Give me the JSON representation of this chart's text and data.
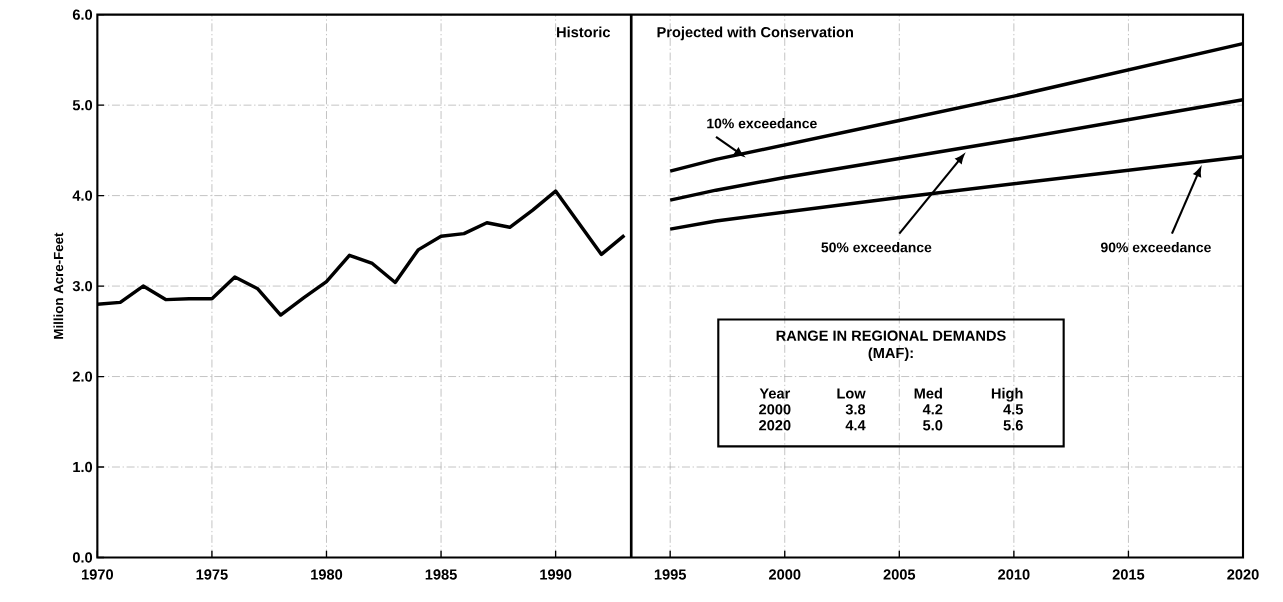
{
  "chart_data": {
    "type": "line",
    "ylabel": "Million Acre-Feet",
    "xlim": [
      1970,
      2020
    ],
    "xticks": [
      1970,
      1975,
      1980,
      1985,
      1990,
      1995,
      2000,
      2005,
      2010,
      2015,
      2020
    ],
    "ylim": [
      0,
      6
    ],
    "yticks": [
      {
        "value": 0,
        "label": "0.0"
      },
      {
        "value": 1,
        "label": "1.0"
      },
      {
        "value": 2,
        "label": "2.0"
      },
      {
        "value": 3,
        "label": "3.0"
      },
      {
        "value": 4,
        "label": "4.0"
      },
      {
        "value": 5,
        "label": "5.0"
      },
      {
        "value": 6,
        "label": "6.0"
      }
    ],
    "grid": true,
    "marker": "none",
    "line_style": "solid",
    "series": [
      {
        "color": "#000000",
        "x": [
          1970,
          1971,
          1972,
          1973,
          1974,
          1975,
          1976,
          1977,
          1978,
          1979,
          1980,
          1981,
          1982,
          1983,
          1984,
          1985,
          1986,
          1987,
          1988,
          1989,
          1990,
          1992,
          1993
        ],
        "values": [
          2.8,
          2.82,
          3.0,
          2.85,
          2.86,
          2.86,
          3.1,
          2.97,
          2.68,
          2.87,
          3.05,
          3.34,
          3.25,
          3.04,
          3.4,
          3.55,
          3.58,
          3.7,
          3.65,
          3.84,
          4.05,
          3.35,
          3.56
        ]
      },
      {
        "name": "10% exceedance",
        "color": "#000000",
        "x": [
          1995,
          1997,
          2005,
          2010,
          2020
        ],
        "values": [
          4.27,
          4.4,
          4.83,
          5.1,
          5.68
        ]
      },
      {
        "name": "50% exceedance",
        "color": "#000000",
        "x": [
          1995,
          1997,
          2000,
          2010,
          2020
        ],
        "values": [
          3.95,
          4.06,
          4.2,
          4.62,
          5.06
        ]
      },
      {
        "name": "90% exceedance",
        "color": "#000000",
        "x": [
          1995,
          1997,
          2005,
          2020
        ],
        "values": [
          3.63,
          3.72,
          3.98,
          4.43
        ]
      }
    ],
    "ref_lines": [
      {
        "axis": "x",
        "value": 1993.3,
        "color": "#000000"
      }
    ],
    "annotations": [
      "Historic",
      "Projected with Conservation",
      "RANGE IN REGIONAL DEMANDS",
      "(MAF):",
      "Year",
      "Low",
      "Med",
      "High",
      "2000",
      "3.8",
      "4.2",
      "4.5",
      "2020",
      "4.4",
      "5.0",
      "5.6"
    ]
  }
}
